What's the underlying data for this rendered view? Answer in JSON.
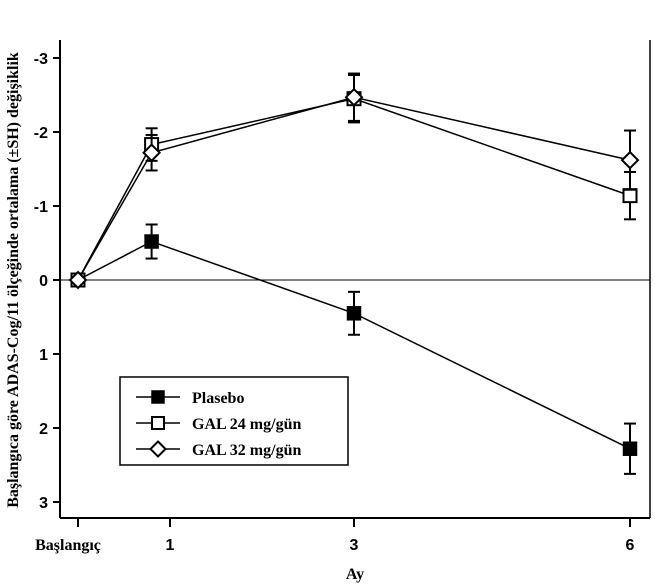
{
  "chart_data": {
    "type": "line",
    "xlabel": "Ay",
    "ylabel": "Başlangıca göre ADAS-Cog/11 ölçeğinde ortalama (±SH) değişiklik",
    "x_ticks": [
      {
        "x": 0,
        "label": "Başlangıç"
      },
      {
        "x": 1,
        "label": "1"
      },
      {
        "x": 3,
        "label": "3"
      },
      {
        "x": 6,
        "label": "6"
      }
    ],
    "y_ticks": [
      {
        "y": 3,
        "label": "-3"
      },
      {
        "y": 2,
        "label": "-2"
      },
      {
        "y": 1,
        "label": "-1"
      },
      {
        "y": 0,
        "label": "0"
      },
      {
        "y": -1,
        "label": "1"
      },
      {
        "y": -2,
        "label": "2"
      },
      {
        "y": -3,
        "label": "3"
      }
    ],
    "xlim": [
      -0.05,
      6.25
    ],
    "ylim": [
      -3.3,
      3.3
    ],
    "reference_line": 0,
    "grid": false,
    "legend_position": "bottom-left",
    "series": [
      {
        "name": "Plasebo",
        "marker": "filled-square",
        "points": [
          {
            "x": 0.0,
            "y": 0.0
          },
          {
            "x": 0.8,
            "y": 0.52,
            "err": 0.23
          },
          {
            "x": 3.0,
            "y": -0.45,
            "err": 0.29
          },
          {
            "x": 6.0,
            "y": -2.28,
            "err": 0.34
          }
        ]
      },
      {
        "name": "GAL 24 mg/gün",
        "marker": "open-square",
        "points": [
          {
            "x": 0.0,
            "y": 0.0
          },
          {
            "x": 0.8,
            "y": 1.83,
            "err": 0.22
          },
          {
            "x": 3.0,
            "y": 2.45,
            "err": 0.32
          },
          {
            "x": 6.0,
            "y": 1.14,
            "err": 0.32
          }
        ]
      },
      {
        "name": "GAL 32 mg/gün",
        "marker": "open-diamond",
        "points": [
          {
            "x": 0.0,
            "y": 0.0
          },
          {
            "x": 0.8,
            "y": 1.72,
            "err": 0.24
          },
          {
            "x": 3.0,
            "y": 2.47,
            "err": 0.32
          },
          {
            "x": 6.0,
            "y": 1.62,
            "err": 0.4
          }
        ]
      }
    ]
  }
}
